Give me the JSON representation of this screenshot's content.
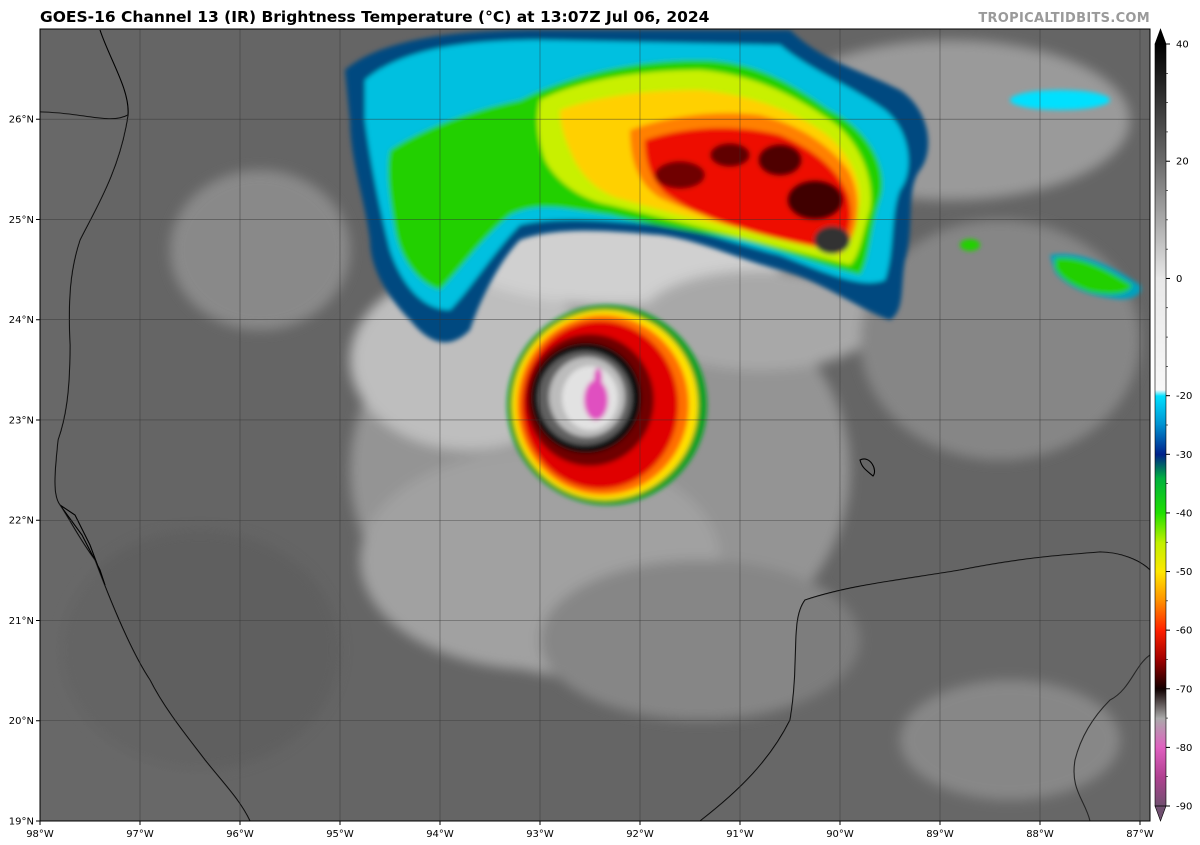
{
  "header": {
    "title": "GOES-16 Channel 13 (IR) Brightness Temperature (°C) at 13:07Z Jul 06, 2024",
    "credit": "TROPICALTIDBITS.COM"
  },
  "map": {
    "region": "Gulf of Mexico",
    "projection": "equirectangular",
    "lon_range": [
      -98.0,
      -86.9
    ],
    "lat_range": [
      19.0,
      26.9
    ],
    "lat_ticks": [
      "19°N",
      "20°N",
      "21°N",
      "22°N",
      "23°N",
      "24°N",
      "25°N",
      "26°N"
    ],
    "lon_ticks": [
      "98°W",
      "97°W",
      "96°W",
      "95°W",
      "94°W",
      "93°W",
      "92°W",
      "91°W",
      "90°W",
      "89°W",
      "88°W",
      "87°W"
    ],
    "features": {
      "storm_center": {
        "lon": -92.5,
        "lat": 23.1,
        "description": "compact tropical cyclone with cold cloud tops below -80°C"
      },
      "northern_convection": {
        "lon_range": [
          -94.8,
          -89.4
        ],
        "lat_range": [
          24.0,
          26.9
        ]
      },
      "eastern_cell": {
        "lon": -87.9,
        "lat": 24.4
      }
    }
  },
  "colorbar": {
    "tick_labels": [
      "40",
      "20",
      "0",
      "-20",
      "-30",
      "-40",
      "-50",
      "-60",
      "-70",
      "-80",
      "-90"
    ],
    "stops": [
      {
        "value": 40,
        "color": "#000000"
      },
      {
        "value": 20,
        "color": "#6b6b6b"
      },
      {
        "value": 0,
        "color": "#e8e8e8"
      },
      {
        "value": -19,
        "color": "#f8f8f8"
      },
      {
        "value": -20,
        "color": "#00e0ff"
      },
      {
        "value": -25,
        "color": "#0090d0"
      },
      {
        "value": -30,
        "color": "#00208a"
      },
      {
        "value": -34,
        "color": "#00b040"
      },
      {
        "value": -40,
        "color": "#20e000"
      },
      {
        "value": -45,
        "color": "#c0f000"
      },
      {
        "value": -50,
        "color": "#ffe800"
      },
      {
        "value": -55,
        "color": "#ff9000"
      },
      {
        "value": -60,
        "color": "#ff2000"
      },
      {
        "value": -65,
        "color": "#a00000"
      },
      {
        "value": -70,
        "color": "#100000"
      },
      {
        "value": -75,
        "color": "#aaaaaa"
      },
      {
        "value": -80,
        "color": "#e060c0"
      },
      {
        "value": -85,
        "color": "#b04090"
      },
      {
        "value": -90,
        "color": "#705070"
      }
    ]
  },
  "colors": {
    "ocean_base": "#6a6a6a",
    "land_base": "#7a7a7a",
    "coastline": "#000000"
  }
}
